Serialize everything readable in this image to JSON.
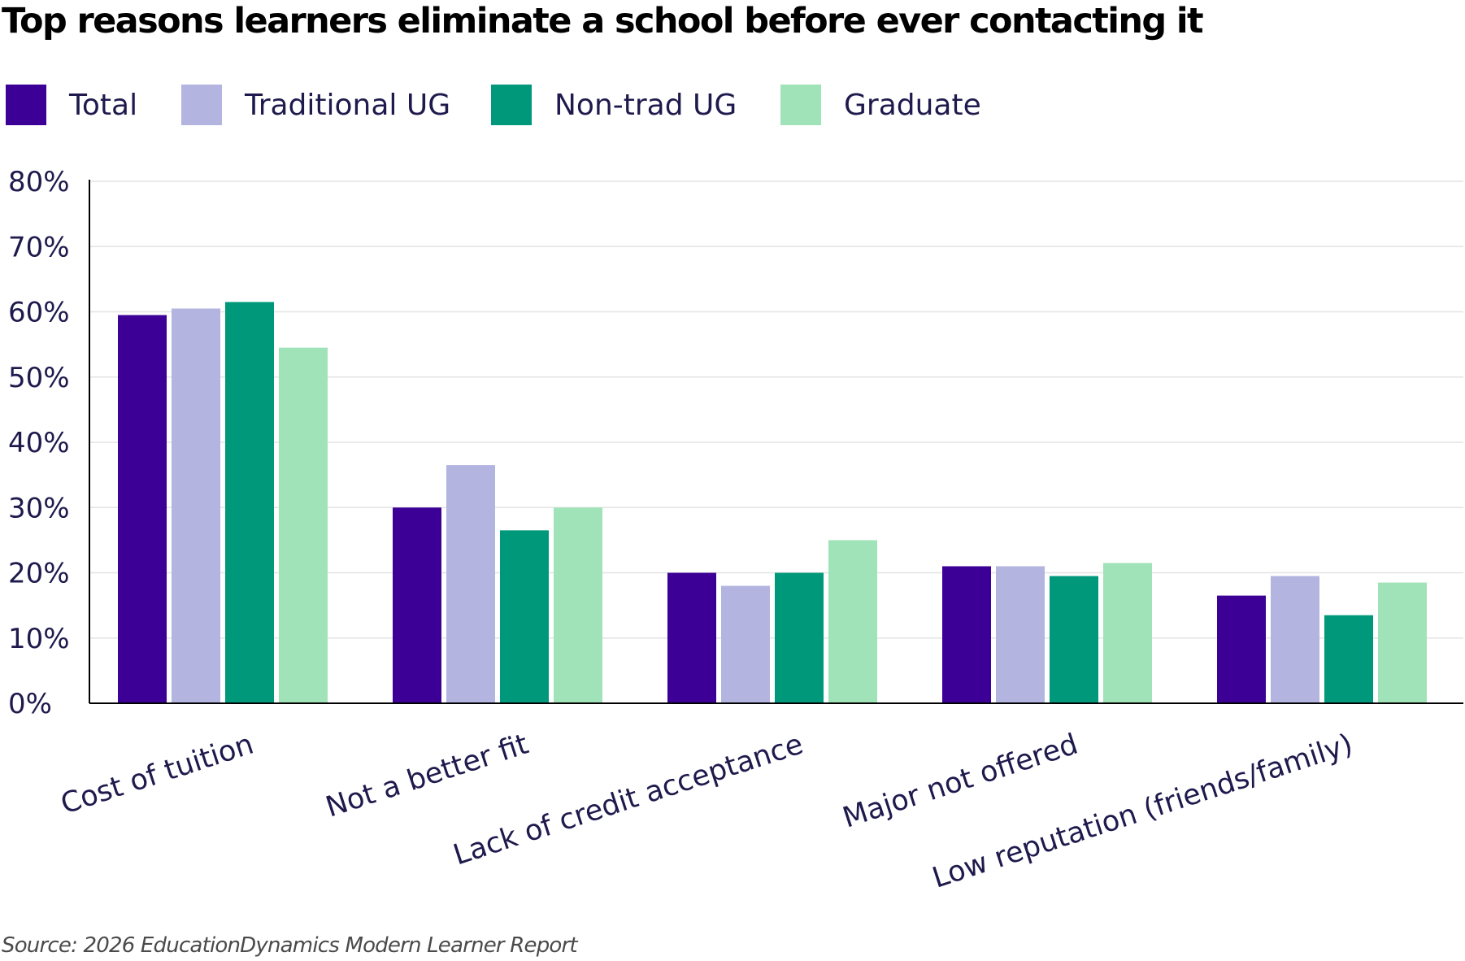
{
  "title": "Top reasons learners eliminate a school before ever contacting it",
  "source": "Source: 2026 EducationDynamics Modern Learner Report",
  "colors": {
    "total": "#3d0096",
    "traditional_ug": "#b3b5e0",
    "non_trad_ug": "#00987a",
    "graduate": "#a1e3b8",
    "text": "#1f1a4d",
    "grid": "#e3e3e3",
    "axis": "#000000"
  },
  "chart_data": {
    "type": "bar",
    "title": "Top reasons learners eliminate a school before ever contacting it",
    "categories": [
      "Cost of tuition",
      "Not a better fit",
      "Lack of credit acceptance",
      "Major not offered",
      "Low reputation (friends/family)"
    ],
    "series": [
      {
        "name": "Total",
        "color": "#3d0096",
        "values": [
          59.5,
          30,
          20,
          21,
          16.5
        ]
      },
      {
        "name": "Traditional UG",
        "color": "#b3b5e0",
        "values": [
          60.5,
          36.5,
          18,
          21,
          19.5
        ]
      },
      {
        "name": "Non-trad UG",
        "color": "#00987a",
        "values": [
          61.5,
          26.5,
          20,
          19.5,
          13.5
        ]
      },
      {
        "name": "Graduate",
        "color": "#a1e3b8",
        "values": [
          54.5,
          30,
          25,
          21.5,
          18.5
        ]
      }
    ],
    "ylim": [
      0,
      80
    ],
    "yticks": [
      0,
      10,
      20,
      30,
      40,
      50,
      60,
      70,
      80
    ],
    "ytick_labels": [
      "0%",
      "10%",
      "20%",
      "30%",
      "40%",
      "50%",
      "60%",
      "70%",
      "80%"
    ],
    "xlabel": "",
    "ylabel": "",
    "grid": true,
    "legend_position": "top-left"
  }
}
